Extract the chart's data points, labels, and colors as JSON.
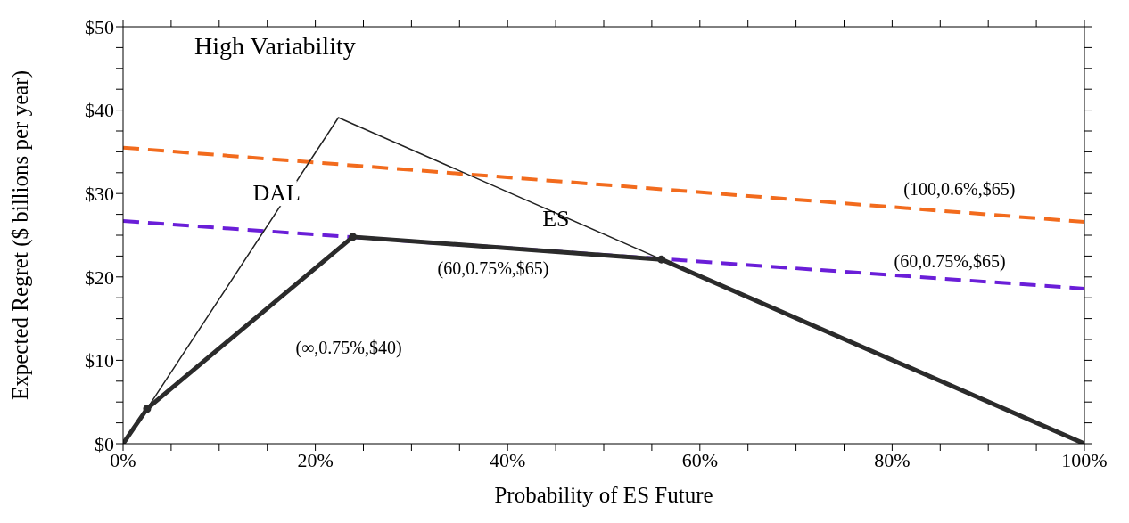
{
  "chart_data": {
    "type": "line",
    "title": "High Variability",
    "xlabel": "Probability of ES Future",
    "ylabel": "Expected Regret ($ billions per year)",
    "xlim": [
      0,
      100
    ],
    "ylim": [
      0,
      50
    ],
    "xticks": [
      {
        "value": 0,
        "label": "0%"
      },
      {
        "value": 5,
        "label": null
      },
      {
        "value": 10,
        "label": null
      },
      {
        "value": 15,
        "label": null
      },
      {
        "value": 20,
        "label": "20%"
      },
      {
        "value": 25,
        "label": null
      },
      {
        "value": 30,
        "label": null
      },
      {
        "value": 35,
        "label": null
      },
      {
        "value": 40,
        "label": "40%"
      },
      {
        "value": 45,
        "label": null
      },
      {
        "value": 50,
        "label": null
      },
      {
        "value": 55,
        "label": null
      },
      {
        "value": 60,
        "label": "60%"
      },
      {
        "value": 65,
        "label": null
      },
      {
        "value": 70,
        "label": null
      },
      {
        "value": 75,
        "label": null
      },
      {
        "value": 80,
        "label": "80%"
      },
      {
        "value": 85,
        "label": null
      },
      {
        "value": 90,
        "label": null
      },
      {
        "value": 95,
        "label": null
      },
      {
        "value": 100,
        "label": "100%"
      }
    ],
    "yticks": [
      {
        "value": 0,
        "label": "$0"
      },
      {
        "value": 2.5,
        "label": null
      },
      {
        "value": 5,
        "label": null
      },
      {
        "value": 7.5,
        "label": null
      },
      {
        "value": 10,
        "label": "$10"
      },
      {
        "value": 12.5,
        "label": null
      },
      {
        "value": 15,
        "label": null
      },
      {
        "value": 17.5,
        "label": null
      },
      {
        "value": 20,
        "label": "$20"
      },
      {
        "value": 22.5,
        "label": null
      },
      {
        "value": 25,
        "label": null
      },
      {
        "value": 27.5,
        "label": null
      },
      {
        "value": 30,
        "label": "$30"
      },
      {
        "value": 32.5,
        "label": null
      },
      {
        "value": 35,
        "label": null
      },
      {
        "value": 37.5,
        "label": null
      },
      {
        "value": 40,
        "label": "$40"
      },
      {
        "value": 42.5,
        "label": null
      },
      {
        "value": 45,
        "label": null
      },
      {
        "value": 47.5,
        "label": null
      },
      {
        "value": 50,
        "label": "$50"
      }
    ],
    "grid": false,
    "series": [
      {
        "color": "#f26b1d",
        "line_style": "dashed",
        "marker": "none",
        "x": [
          0,
          100
        ],
        "values": [
          35.5,
          26.6
        ]
      },
      {
        "color": "#6a1ed8",
        "line_style": "dashed",
        "marker": "none",
        "x": [
          0,
          100
        ],
        "values": [
          26.7,
          18.6
        ]
      },
      {
        "color": "#222222",
        "line_style": "solid",
        "marker": "none",
        "x": [
          0,
          2.5,
          22.4,
          56
        ],
        "values": [
          0,
          4.2,
          39.1,
          22.1
        ]
      },
      {
        "color": "#2b2b2b",
        "line_style": "solid",
        "marker": "none",
        "x": [
          0,
          2.5,
          23.9,
          56,
          100
        ],
        "values": [
          0,
          4.2,
          24.8,
          22.1,
          0
        ]
      },
      {
        "type": "scatter",
        "color": "#2b2b2b",
        "marker": "circle",
        "x": [
          2.5,
          23.9,
          56
        ],
        "values": [
          4.2,
          24.8,
          22.1
        ]
      }
    ],
    "annotations": [
      {
        "text": "DAL",
        "x": 17,
        "y": 29.6
      },
      {
        "text": "ES",
        "x": 44,
        "y": 28.2
      },
      {
        "text": "(100,0.6%,$65)",
        "x": 87,
        "y": 27.8
      },
      {
        "text": "(60,0.75%,$65)",
        "x": 86,
        "y": 19.7
      },
      {
        "text": "(60,0.75%,$65)",
        "x": 38.5,
        "y": 23.6
      },
      {
        "text": "(∞,0.75%,$40)",
        "x": 18,
        "y": 19.1
      }
    ]
  }
}
